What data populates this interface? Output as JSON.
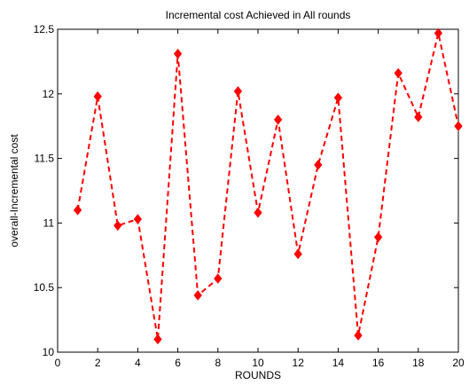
{
  "chart_data": {
    "type": "line",
    "title": "Incremental cost Achieved in All rounds",
    "xlabel": "ROUNDS",
    "ylabel": "overall-Incremental cost",
    "xlim": [
      0,
      20
    ],
    "ylim": [
      10,
      12.5
    ],
    "xticks": [
      0,
      2,
      4,
      6,
      8,
      10,
      12,
      14,
      16,
      18,
      20
    ],
    "yticks": [
      10,
      10.5,
      11,
      11.5,
      12,
      12.5
    ],
    "ytick_labels": [
      "10",
      "10.5",
      "11",
      "11.5",
      "12",
      "12.5"
    ],
    "grid": false,
    "series": [
      {
        "color": "#ff0000",
        "line_style": "dashed",
        "marker": "diamond",
        "x": [
          1,
          2,
          3,
          4,
          5,
          6,
          7,
          8,
          9,
          10,
          11,
          12,
          13,
          14,
          15,
          16,
          17,
          18,
          19,
          20
        ],
        "values": [
          11.1,
          11.98,
          10.98,
          11.03,
          10.1,
          12.31,
          10.44,
          10.57,
          12.02,
          11.08,
          11.8,
          10.76,
          11.45,
          11.97,
          10.13,
          10.89,
          12.16,
          11.82,
          12.47,
          11.75
        ]
      }
    ]
  }
}
